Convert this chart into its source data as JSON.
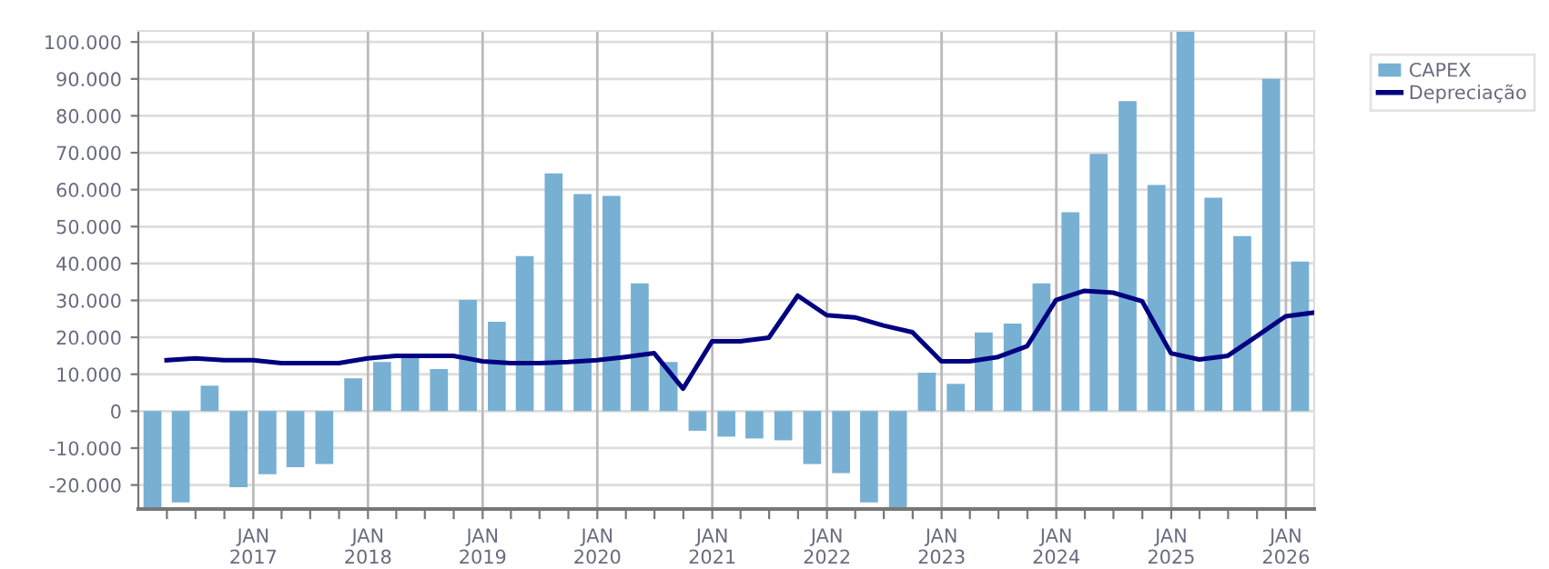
{
  "chart_data": {
    "type": "bar",
    "series": [
      {
        "name": "CAPEX",
        "color": "#77b0d3",
        "x": [
          "2016-02-15",
          "2016-05-15",
          "2016-08-15",
          "2016-11-15",
          "2017-02-15",
          "2017-05-15",
          "2017-08-15",
          "2017-11-15",
          "2018-02-15",
          "2018-05-15",
          "2018-08-15",
          "2018-11-15",
          "2019-02-15",
          "2019-05-15",
          "2019-08-15",
          "2019-11-15",
          "2020-02-15",
          "2020-05-15",
          "2020-08-15",
          "2020-11-15",
          "2021-02-15",
          "2021-05-15",
          "2021-08-15",
          "2021-11-15",
          "2022-02-15",
          "2022-05-15",
          "2022-08-15",
          "2022-11-15",
          "2023-02-15",
          "2023-05-15",
          "2023-08-15",
          "2023-11-15",
          "2024-02-15",
          "2024-05-15",
          "2024-08-15",
          "2024-11-15",
          "2025-02-15",
          "2025-05-15",
          "2025-08-15",
          "2025-11-15",
          "2026-02-15"
        ],
        "values": [
          -26400,
          -24700,
          6900,
          -20600,
          -17100,
          -15200,
          -14300,
          8900,
          13300,
          14800,
          11400,
          30100,
          24200,
          42000,
          64400,
          58800,
          58300,
          34600,
          13300,
          -5300,
          -6900,
          -7400,
          -7900,
          -14300,
          -16800,
          -24700,
          -26400,
          10400,
          7400,
          21300,
          23700,
          34600,
          53900,
          69700,
          84000,
          61300,
          102900,
          57800,
          47400,
          90000,
          40500
        ]
      },
      {
        "name": "Depreciação",
        "type": "line",
        "color": "#000080",
        "x": [
          "2016-03-31",
          "2016-06-30",
          "2016-09-30",
          "2016-12-31",
          "2017-03-31",
          "2017-06-30",
          "2017-09-30",
          "2017-12-31",
          "2018-03-31",
          "2018-06-30",
          "2018-09-30",
          "2018-12-31",
          "2019-03-31",
          "2019-06-30",
          "2019-09-30",
          "2019-12-31",
          "2020-03-31",
          "2020-06-30",
          "2020-09-30",
          "2020-12-31",
          "2021-03-31",
          "2021-06-30",
          "2021-09-30",
          "2021-12-31",
          "2022-03-31",
          "2022-06-30",
          "2022-09-30",
          "2022-12-31",
          "2023-03-31",
          "2023-06-30",
          "2023-09-30",
          "2023-12-31",
          "2024-03-31",
          "2024-06-30",
          "2024-09-30",
          "2024-12-31",
          "2025-03-31",
          "2025-06-30",
          "2025-09-30",
          "2025-12-31",
          "2026-03-31"
        ],
        "values": [
          13800,
          14300,
          13800,
          13800,
          13000,
          13000,
          13000,
          14300,
          15000,
          15000,
          15000,
          13500,
          13000,
          13000,
          13300,
          13800,
          14700,
          15700,
          6100,
          18900,
          18900,
          19900,
          31300,
          26000,
          25400,
          23200,
          21400,
          13500,
          13500,
          14700,
          17600,
          30100,
          32600,
          32100,
          29800,
          15700,
          14000,
          15000,
          20300,
          25700,
          26700
        ]
      }
    ],
    "xlim": [
      "2016-01-01",
      "2026-04-01"
    ],
    "xticks": [
      {
        "value": "2016-04-01",
        "label": null
      },
      {
        "value": "2016-07-01",
        "label": null
      },
      {
        "value": "2016-10-01",
        "label": null
      },
      {
        "value": "2017-01-01",
        "label": "JAN\n2017"
      },
      {
        "value": "2017-04-01",
        "label": null
      },
      {
        "value": "2017-07-01",
        "label": null
      },
      {
        "value": "2017-10-01",
        "label": null
      },
      {
        "value": "2018-01-01",
        "label": "JAN\n2018"
      },
      {
        "value": "2018-04-01",
        "label": null
      },
      {
        "value": "2018-07-01",
        "label": null
      },
      {
        "value": "2018-10-01",
        "label": null
      },
      {
        "value": "2019-01-01",
        "label": "JAN\n2019"
      },
      {
        "value": "2019-04-01",
        "label": null
      },
      {
        "value": "2019-07-01",
        "label": null
      },
      {
        "value": "2019-10-01",
        "label": null
      },
      {
        "value": "2020-01-01",
        "label": "JAN\n2020"
      },
      {
        "value": "2020-04-01",
        "label": null
      },
      {
        "value": "2020-07-01",
        "label": null
      },
      {
        "value": "2020-10-01",
        "label": null
      },
      {
        "value": "2021-01-01",
        "label": "JAN\n2021"
      },
      {
        "value": "2021-04-01",
        "label": null
      },
      {
        "value": "2021-07-01",
        "label": null
      },
      {
        "value": "2021-10-01",
        "label": null
      },
      {
        "value": "2022-01-01",
        "label": "JAN\n2022"
      },
      {
        "value": "2022-04-01",
        "label": null
      },
      {
        "value": "2022-07-01",
        "label": null
      },
      {
        "value": "2022-10-01",
        "label": null
      },
      {
        "value": "2023-01-01",
        "label": "JAN\n2023"
      },
      {
        "value": "2023-04-01",
        "label": null
      },
      {
        "value": "2023-07-01",
        "label": null
      },
      {
        "value": "2023-10-01",
        "label": null
      },
      {
        "value": "2024-01-01",
        "label": "JAN\n2024"
      },
      {
        "value": "2024-04-01",
        "label": null
      },
      {
        "value": "2024-07-01",
        "label": null
      },
      {
        "value": "2024-10-01",
        "label": null
      },
      {
        "value": "2025-01-01",
        "label": "JAN\n2025"
      },
      {
        "value": "2025-04-01",
        "label": null
      },
      {
        "value": "2025-07-01",
        "label": null
      },
      {
        "value": "2025-10-01",
        "label": null
      },
      {
        "value": "2026-01-01",
        "label": "JAN\n2026"
      }
    ],
    "ylim": [
      -26500,
      103000
    ],
    "yticks": [
      {
        "value": -20000,
        "label": "-20.000"
      },
      {
        "value": -10000,
        "label": "-10.000"
      },
      0,
      {
        "value": 10000,
        "label": "10.000"
      },
      {
        "value": 20000,
        "label": "20.000"
      },
      {
        "value": 30000,
        "label": "30.000"
      },
      {
        "value": 40000,
        "label": "40.000"
      },
      {
        "value": 50000,
        "label": "50.000"
      },
      {
        "value": 60000,
        "label": "60.000"
      },
      {
        "value": 70000,
        "label": "70.000"
      },
      {
        "value": 80000,
        "label": "80.000"
      },
      {
        "value": 90000,
        "label": "90.000"
      },
      {
        "value": 100000,
        "label": "100.000"
      }
    ],
    "grid": true,
    "legend": "top right",
    "marker": "none",
    "line_style": "solid"
  }
}
